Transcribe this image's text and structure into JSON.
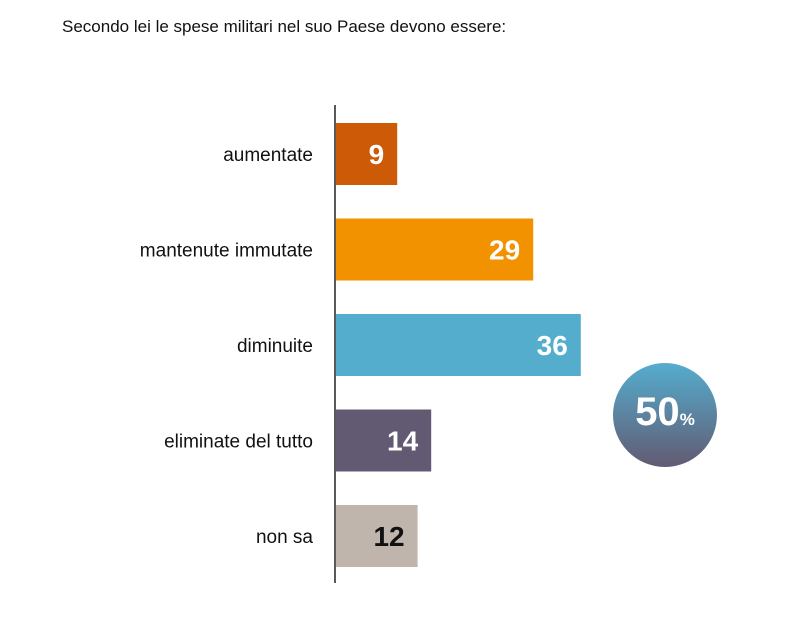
{
  "title": "Secondo lei le spese militari nel suo Paese devono essere:",
  "chart_data": {
    "type": "bar",
    "orientation": "horizontal",
    "title": "Secondo lei le spese militari nel suo Paese devono essere:",
    "categories": [
      "aumentate",
      "mantenute immutate",
      "diminuite",
      "eliminate del tutto",
      "non sa"
    ],
    "values": [
      9,
      29,
      36,
      14,
      12
    ],
    "colors": [
      "#CC5A06",
      "#F39200",
      "#55ADCE",
      "#625A72",
      "#C0B5AC"
    ],
    "label_colors": [
      "#FFFFFF",
      "#FFFFFF",
      "#FFFFFF",
      "#FFFFFF",
      "#111111"
    ],
    "xlim": [
      0,
      40
    ],
    "grid": false,
    "annotation": {
      "value": "50",
      "unit": "%",
      "note_categories": [
        "diminuite",
        "eliminate del tutto"
      ]
    }
  }
}
